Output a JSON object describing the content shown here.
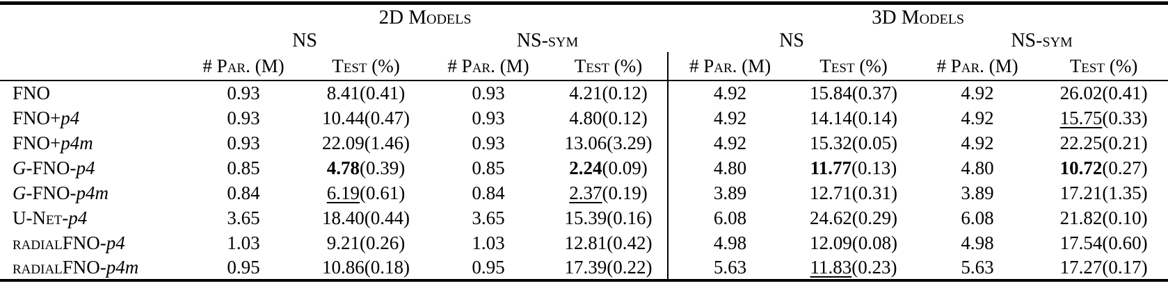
{
  "page": {
    "background": "#ffffff",
    "text_color": "#000000"
  },
  "table": {
    "group_headers": [
      "2D Models",
      "3D Models"
    ],
    "dataset_headers": [
      "NS",
      "NS-sym",
      "NS",
      "NS-sym"
    ],
    "metric_headers": {
      "par": "# Par. (M)",
      "test": "Test (%)"
    },
    "rows": [
      {
        "name": [
          {
            "t": "FNO"
          }
        ],
        "cells": [
          {
            "par": "0.93",
            "test": "8.41",
            "std": "0.41",
            "style": "plain"
          },
          {
            "par": "0.93",
            "test": "4.21",
            "std": "0.12",
            "style": "plain"
          },
          {
            "par": "4.92",
            "test": "15.84",
            "std": "0.37",
            "style": "plain"
          },
          {
            "par": "4.92",
            "test": "26.02",
            "std": "0.41",
            "style": "plain"
          }
        ]
      },
      {
        "name": [
          {
            "t": "FNO+"
          },
          {
            "t": "p4",
            "s": "it"
          }
        ],
        "cells": [
          {
            "par": "0.93",
            "test": "10.44",
            "std": "0.47",
            "style": "plain"
          },
          {
            "par": "0.93",
            "test": "4.80",
            "std": "0.12",
            "style": "plain"
          },
          {
            "par": "4.92",
            "test": "14.14",
            "std": "0.14",
            "style": "plain"
          },
          {
            "par": "4.92",
            "test": "15.75",
            "std": "0.33",
            "style": "underline"
          }
        ]
      },
      {
        "name": [
          {
            "t": "FNO+"
          },
          {
            "t": "p4m",
            "s": "it"
          }
        ],
        "cells": [
          {
            "par": "0.93",
            "test": "22.09",
            "std": "1.46",
            "style": "plain"
          },
          {
            "par": "0.93",
            "test": "13.06",
            "std": "3.29",
            "style": "plain"
          },
          {
            "par": "4.92",
            "test": "15.32",
            "std": "0.05",
            "style": "plain"
          },
          {
            "par": "4.92",
            "test": "22.25",
            "std": "0.21",
            "style": "plain"
          }
        ]
      },
      {
        "name": [
          {
            "t": "G",
            "s": "it"
          },
          {
            "t": "-FNO-"
          },
          {
            "t": "p4",
            "s": "it"
          }
        ],
        "cells": [
          {
            "par": "0.85",
            "test": "4.78",
            "std": "0.39",
            "style": "bold"
          },
          {
            "par": "0.85",
            "test": "2.24",
            "std": "0.09",
            "style": "bold"
          },
          {
            "par": "4.80",
            "test": "11.77",
            "std": "0.13",
            "style": "bold"
          },
          {
            "par": "4.80",
            "test": "10.72",
            "std": "0.27",
            "style": "bold"
          }
        ]
      },
      {
        "name": [
          {
            "t": "G",
            "s": "it"
          },
          {
            "t": "-FNO-"
          },
          {
            "t": "p4m",
            "s": "it"
          }
        ],
        "cells": [
          {
            "par": "0.84",
            "test": "6.19",
            "std": "0.61",
            "style": "underline"
          },
          {
            "par": "0.84",
            "test": "2.37",
            "std": "0.19",
            "style": "underline"
          },
          {
            "par": "3.89",
            "test": "12.71",
            "std": "0.31",
            "style": "plain"
          },
          {
            "par": "3.89",
            "test": "17.21",
            "std": "1.35",
            "style": "plain"
          }
        ]
      },
      {
        "name": [
          {
            "t": "U-Net",
            "s": "sc"
          },
          {
            "t": "-"
          },
          {
            "t": "p4",
            "s": "it"
          }
        ],
        "cells": [
          {
            "par": "3.65",
            "test": "18.40",
            "std": "0.44",
            "style": "plain"
          },
          {
            "par": "3.65",
            "test": "15.39",
            "std": "0.16",
            "style": "plain"
          },
          {
            "par": "6.08",
            "test": "24.62",
            "std": "0.29",
            "style": "plain"
          },
          {
            "par": "6.08",
            "test": "21.82",
            "std": "0.10",
            "style": "plain"
          }
        ]
      },
      {
        "name": [
          {
            "t": "radial",
            "s": "sc"
          },
          {
            "t": "FNO-"
          },
          {
            "t": "p4",
            "s": "it"
          }
        ],
        "cells": [
          {
            "par": "1.03",
            "test": "9.21",
            "std": "0.26",
            "style": "plain"
          },
          {
            "par": "1.03",
            "test": "12.81",
            "std": "0.42",
            "style": "plain"
          },
          {
            "par": "4.98",
            "test": "12.09",
            "std": "0.08",
            "style": "plain"
          },
          {
            "par": "4.98",
            "test": "17.54",
            "std": "0.60",
            "style": "plain"
          }
        ]
      },
      {
        "name": [
          {
            "t": "radial",
            "s": "sc"
          },
          {
            "t": "FNO-"
          },
          {
            "t": "p4m",
            "s": "it"
          }
        ],
        "cells": [
          {
            "par": "0.95",
            "test": "10.86",
            "std": "0.18",
            "style": "plain"
          },
          {
            "par": "0.95",
            "test": "17.39",
            "std": "0.22",
            "style": "plain"
          },
          {
            "par": "5.63",
            "test": "11.83",
            "std": "0.23",
            "style": "underline"
          },
          {
            "par": "5.63",
            "test": "17.27",
            "std": "0.17",
            "style": "plain"
          }
        ]
      }
    ]
  }
}
